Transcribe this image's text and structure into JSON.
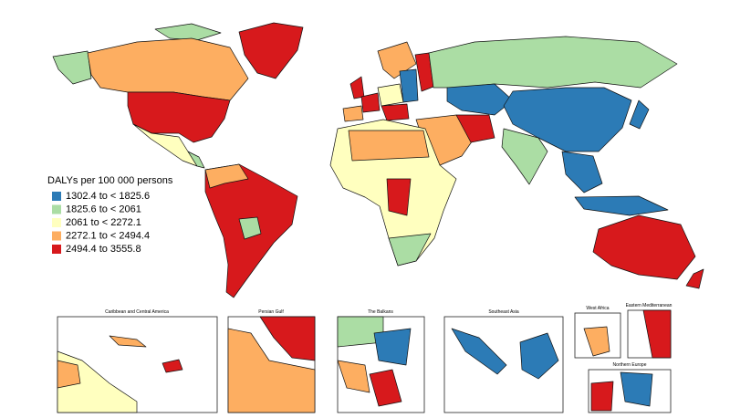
{
  "legend": {
    "title": "DALYs per 100 000 persons",
    "items": [
      {
        "label": "1302.4 to < 1825.6",
        "color": "#2c7bb6"
      },
      {
        "label": "1825.6 to < 2061",
        "color": "#abdda4"
      },
      {
        "label": "2061 to < 2272.1",
        "color": "#ffffbf"
      },
      {
        "label": "2272.1 to < 2494.4",
        "color": "#fdae61"
      },
      {
        "label": "2494.4 to  3555.8",
        "color": "#d7191c"
      }
    ]
  },
  "insets": [
    {
      "title": "Caribbean and Central America"
    },
    {
      "title": "Persian Gulf"
    },
    {
      "title": "The Balkans"
    },
    {
      "title": "Southeast Asia"
    },
    {
      "title": "West Africa"
    },
    {
      "title": "Eastern Mediterranean"
    },
    {
      "title": "Northern Europe"
    }
  ]
}
